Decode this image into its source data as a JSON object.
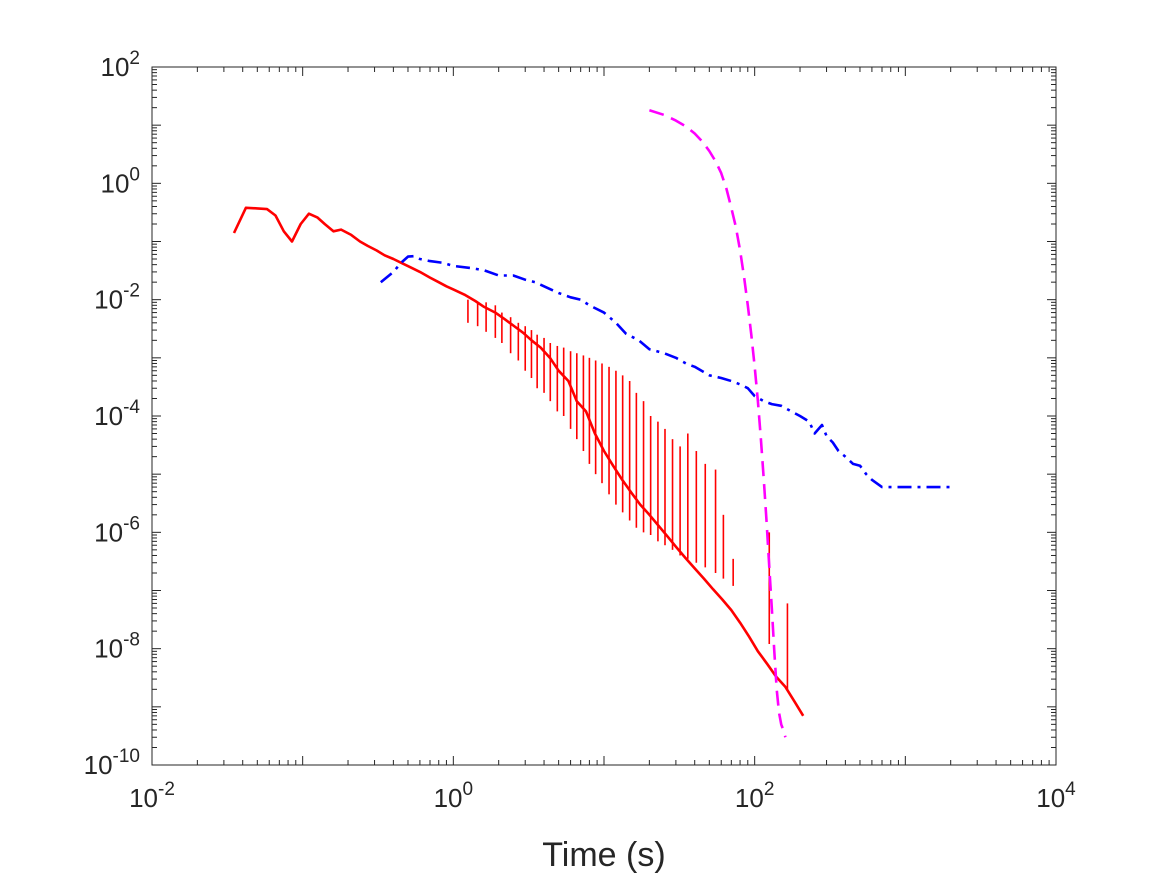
{
  "chart_data": {
    "type": "line",
    "title": "",
    "xlabel": "Time (s)",
    "ylabel": "",
    "xscale": "log",
    "yscale": "log",
    "xlim": [
      0.01,
      10000
    ],
    "ylim": [
      1e-10,
      100
    ],
    "grid": false,
    "legend": "none",
    "x_ticks": [
      {
        "value": 0.01,
        "base": "10",
        "exp": "-2"
      },
      {
        "value": 1,
        "base": "10",
        "exp": "0"
      },
      {
        "value": 100,
        "base": "10",
        "exp": "2"
      },
      {
        "value": 10000,
        "base": "10",
        "exp": "4"
      }
    ],
    "y_ticks": [
      {
        "value": 1e-10,
        "base": "10",
        "exp": "-10"
      },
      {
        "value": 1e-08,
        "base": "10",
        "exp": "-8"
      },
      {
        "value": 1e-06,
        "base": "10",
        "exp": "-6"
      },
      {
        "value": 0.0001,
        "base": "10",
        "exp": "-4"
      },
      {
        "value": 0.01,
        "base": "10",
        "exp": "-2"
      },
      {
        "value": 1,
        "base": "10",
        "exp": "0"
      },
      {
        "value": 100,
        "base": "10",
        "exp": "2"
      }
    ],
    "series": [
      {
        "color": "#ff0000",
        "style": "solid",
        "x": [
          0.035,
          0.042,
          0.05,
          0.058,
          0.066,
          0.075,
          0.085,
          0.097,
          0.11,
          0.125,
          0.14,
          0.16,
          0.18,
          0.21,
          0.24,
          0.27,
          0.31,
          0.35,
          0.4,
          0.46,
          0.52,
          0.6,
          0.7,
          0.8,
          0.9,
          1.0,
          1.2,
          1.4,
          1.6,
          1.9,
          2.2,
          2.5,
          2.9,
          3.3,
          3.8,
          4.4,
          5.0,
          5.8,
          6.6,
          7.6,
          8.7,
          10,
          11.5,
          13.2,
          15.2,
          17.4,
          20,
          23,
          26.4,
          30.3,
          34.8,
          40,
          46,
          53,
          61,
          70,
          80,
          92,
          105,
          121,
          139,
          160,
          185,
          210
        ],
        "y": [
          0.14,
          0.38,
          0.37,
          0.36,
          0.28,
          0.15,
          0.1,
          0.2,
          0.3,
          0.26,
          0.2,
          0.15,
          0.16,
          0.13,
          0.1,
          0.084,
          0.07,
          0.058,
          0.05,
          0.042,
          0.036,
          0.03,
          0.024,
          0.02,
          0.017,
          0.015,
          0.012,
          0.0095,
          0.0075,
          0.006,
          0.0046,
          0.0036,
          0.0027,
          0.002,
          0.0015,
          0.00098,
          0.0006,
          0.0004,
          0.00018,
          0.00012,
          5e-05,
          2.5e-05,
          1.4e-05,
          8e-06,
          4.8e-06,
          3e-06,
          2e-06,
          1.3e-06,
          8.5e-07,
          5.5e-07,
          3.6e-07,
          2.4e-07,
          1.6e-07,
          1.05e-07,
          7e-08,
          4.6e-08,
          2.8e-08,
          1.6e-08,
          9e-09,
          5.5e-09,
          3.3e-09,
          2.2e-09,
          1.2e-09,
          7e-10
        ],
        "spikes": [
          {
            "x": 1.25,
            "top": 0.01,
            "bottom": 0.004
          },
          {
            "x": 1.45,
            "top": 0.009,
            "bottom": 0.0035
          },
          {
            "x": 1.65,
            "top": 0.009,
            "bottom": 0.0028
          },
          {
            "x": 1.9,
            "top": 0.008,
            "bottom": 0.0022
          },
          {
            "x": 2.1,
            "top": 0.006,
            "bottom": 0.0018
          },
          {
            "x": 2.4,
            "top": 0.005,
            "bottom": 0.0012
          },
          {
            "x": 2.7,
            "top": 0.004,
            "bottom": 0.0009
          },
          {
            "x": 3.0,
            "top": 0.0035,
            "bottom": 0.0006
          },
          {
            "x": 3.3,
            "top": 0.003,
            "bottom": 0.00045
          },
          {
            "x": 3.6,
            "top": 0.0025,
            "bottom": 0.0003
          },
          {
            "x": 4.0,
            "top": 0.0022,
            "bottom": 0.00025
          },
          {
            "x": 4.4,
            "top": 0.0018,
            "bottom": 0.00018
          },
          {
            "x": 4.9,
            "top": 0.0016,
            "bottom": 0.00012
          },
          {
            "x": 5.4,
            "top": 0.0015,
            "bottom": 0.0001
          },
          {
            "x": 6.0,
            "top": 0.0013,
            "bottom": 6e-05
          },
          {
            "x": 6.6,
            "top": 0.0012,
            "bottom": 4e-05
          },
          {
            "x": 7.3,
            "top": 0.0011,
            "bottom": 2.5e-05
          },
          {
            "x": 8.0,
            "top": 0.001,
            "bottom": 1.5e-05
          },
          {
            "x": 8.8,
            "top": 0.0009,
            "bottom": 1e-05
          },
          {
            "x": 9.7,
            "top": 0.0008,
            "bottom": 7e-06
          },
          {
            "x": 10.8,
            "top": 0.0007,
            "bottom": 4.5e-06
          },
          {
            "x": 12,
            "top": 0.0006,
            "bottom": 3e-06
          },
          {
            "x": 13.3,
            "top": 0.0005,
            "bottom": 2.2e-06
          },
          {
            "x": 14.8,
            "top": 0.0004,
            "bottom": 1.6e-06
          },
          {
            "x": 16.4,
            "top": 0.00025,
            "bottom": 1.2e-06
          },
          {
            "x": 18.3,
            "top": 0.00018,
            "bottom": 1e-06
          },
          {
            "x": 20.4,
            "top": 0.0001,
            "bottom": 9e-07
          },
          {
            "x": 22.8,
            "top": 8e-05,
            "bottom": 7e-07
          },
          {
            "x": 25.4,
            "top": 6e-05,
            "bottom": 6e-07
          },
          {
            "x": 28.5,
            "top": 4e-05,
            "bottom": 5e-07
          },
          {
            "x": 32,
            "top": 3e-05,
            "bottom": 4e-07
          },
          {
            "x": 36,
            "top": 5e-05,
            "bottom": 3.5e-07
          },
          {
            "x": 41,
            "top": 2.5e-05,
            "bottom": 3e-07
          },
          {
            "x": 47,
            "top": 1.5e-05,
            "bottom": 2.5e-07
          },
          {
            "x": 55,
            "top": 1.2e-05,
            "bottom": 2e-07
          },
          {
            "x": 62,
            "top": 2e-06,
            "bottom": 1.6e-07
          },
          {
            "x": 72,
            "top": 3.5e-07,
            "bottom": 1.2e-07
          },
          {
            "x": 125,
            "top": 1e-06,
            "bottom": 1.2e-08
          },
          {
            "x": 165,
            "top": 6e-08,
            "bottom": 2e-09
          }
        ]
      },
      {
        "color": "#0000ff",
        "style": "dashdot",
        "x": [
          0.33,
          0.4,
          0.45,
          0.5,
          0.55,
          0.6,
          0.7,
          0.85,
          1.0,
          1.3,
          1.6,
          2.0,
          2.5,
          3.0,
          3.5,
          4.0,
          5.0,
          6.0,
          7.0,
          8.0,
          10,
          12,
          14,
          17,
          20,
          25,
          30,
          35,
          40,
          50,
          60,
          70,
          80,
          90,
          100,
          115,
          130,
          150,
          175,
          200,
          230,
          250,
          280,
          300,
          330,
          360,
          400,
          450,
          500,
          550,
          600,
          700,
          800,
          1000,
          1500,
          2000
        ],
        "y": [
          0.02,
          0.03,
          0.043,
          0.055,
          0.056,
          0.05,
          0.046,
          0.043,
          0.038,
          0.035,
          0.032,
          0.026,
          0.026,
          0.022,
          0.02,
          0.017,
          0.013,
          0.011,
          0.01,
          0.008,
          0.006,
          0.004,
          0.0026,
          0.002,
          0.0014,
          0.0012,
          0.001,
          0.0008,
          0.0007,
          0.0005,
          0.00045,
          0.0004,
          0.00035,
          0.0003,
          0.00022,
          0.00018,
          0.00016,
          0.00015,
          0.00012,
          0.0001,
          8e-05,
          5e-05,
          7e-05,
          4.5e-05,
          3.5e-05,
          2.5e-05,
          2e-05,
          1.5e-05,
          1.4e-05,
          1e-05,
          8e-06,
          6e-06,
          6e-06,
          6e-06,
          6e-06,
          6e-06
        ]
      },
      {
        "color": "#ff00ff",
        "style": "dashed",
        "x": [
          20,
          25,
          30,
          35,
          40,
          45,
          50,
          55,
          60,
          65,
          70,
          75,
          80,
          85,
          90,
          95,
          100,
          105,
          110,
          115,
          120,
          125,
          130,
          135,
          140,
          145,
          150,
          155,
          160
        ],
        "y": [
          18,
          15,
          12,
          9.5,
          7.2,
          5.2,
          3.6,
          2.4,
          1.5,
          0.8,
          0.38,
          0.18,
          0.07,
          0.025,
          0.008,
          0.0025,
          0.0007,
          0.00018,
          4e-05,
          8e-06,
          1.5e-06,
          2.5e-07,
          5e-08,
          9e-09,
          2e-09,
          8e-10,
          5e-10,
          4e-10,
          3e-10
        ]
      }
    ]
  }
}
